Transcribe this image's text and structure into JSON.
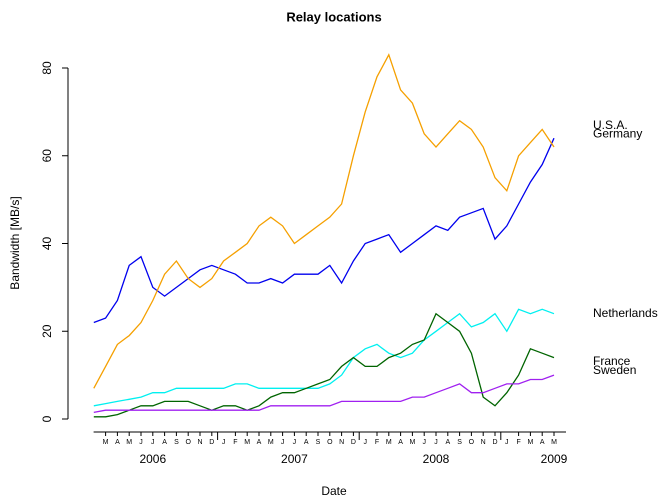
{
  "chart_data": {
    "type": "line",
    "title": "Relay locations",
    "x_label": "Date",
    "y_label": "Bandwidth [MB/s]",
    "x": [
      "2006-02",
      "2006-03",
      "2006-04",
      "2006-05",
      "2006-06",
      "2006-07",
      "2006-08",
      "2006-09",
      "2006-10",
      "2006-11",
      "2006-12",
      "2007-01",
      "2007-02",
      "2007-03",
      "2007-04",
      "2007-05",
      "2007-06",
      "2007-07",
      "2007-08",
      "2007-09",
      "2007-10",
      "2007-11",
      "2007-12",
      "2008-01",
      "2008-02",
      "2008-03",
      "2008-04",
      "2008-05",
      "2008-06",
      "2008-07",
      "2008-08",
      "2008-09",
      "2008-10",
      "2008-11",
      "2008-12",
      "2009-01",
      "2009-02",
      "2009-03",
      "2009-04",
      "2009-05"
    ],
    "xlim": [
      "2006-01",
      "2009-06"
    ],
    "xticks": [
      {
        "value": "2006-03",
        "label": "M"
      },
      {
        "value": "2006-04",
        "label": "A"
      },
      {
        "value": "2006-05",
        "label": "M"
      },
      {
        "value": "2006-06",
        "label": "J"
      },
      {
        "value": "2006-07",
        "label": "J"
      },
      {
        "value": "2006-08",
        "label": "A"
      },
      {
        "value": "2006-09",
        "label": "S"
      },
      {
        "value": "2006-10",
        "label": "O"
      },
      {
        "value": "2006-11",
        "label": "N"
      },
      {
        "value": "2006-12",
        "label": "D"
      },
      {
        "value": "2007-01",
        "label": "J"
      },
      {
        "value": "2007-02",
        "label": "F"
      },
      {
        "value": "2007-03",
        "label": "M"
      },
      {
        "value": "2007-04",
        "label": "A"
      },
      {
        "value": "2007-05",
        "label": "M"
      },
      {
        "value": "2007-06",
        "label": "J"
      },
      {
        "value": "2007-07",
        "label": "J"
      },
      {
        "value": "2007-08",
        "label": "A"
      },
      {
        "value": "2007-09",
        "label": "S"
      },
      {
        "value": "2007-10",
        "label": "O"
      },
      {
        "value": "2007-11",
        "label": "N"
      },
      {
        "value": "2007-12",
        "label": "D"
      },
      {
        "value": "2008-01",
        "label": "J"
      },
      {
        "value": "2008-02",
        "label": "F"
      },
      {
        "value": "2008-03",
        "label": "M"
      },
      {
        "value": "2008-04",
        "label": "A"
      },
      {
        "value": "2008-05",
        "label": "M"
      },
      {
        "value": "2008-06",
        "label": "J"
      },
      {
        "value": "2008-07",
        "label": "J"
      },
      {
        "value": "2008-08",
        "label": "A"
      },
      {
        "value": "2008-09",
        "label": "S"
      },
      {
        "value": "2008-10",
        "label": "O"
      },
      {
        "value": "2008-11",
        "label": "N"
      },
      {
        "value": "2008-12",
        "label": "D"
      },
      {
        "value": "2009-01",
        "label": "J"
      },
      {
        "value": "2009-02",
        "label": "F"
      },
      {
        "value": "2009-03",
        "label": "M"
      },
      {
        "value": "2009-04",
        "label": "A"
      },
      {
        "value": "2009-05",
        "label": "M"
      }
    ],
    "year_ticks": [
      {
        "value": "2006-07",
        "label": "2006"
      },
      {
        "value": "2007-07",
        "label": "2007"
      },
      {
        "value": "2008-07",
        "label": "2008"
      },
      {
        "value": "2009-05",
        "label": "2009"
      }
    ],
    "ylim": [
      0,
      80
    ],
    "yticks": [
      0,
      20,
      40,
      60,
      80
    ],
    "series": [
      {
        "name": "U.S.A.",
        "color": "#0000ee",
        "values": [
          22,
          23,
          27,
          35,
          37,
          30,
          28,
          30,
          32,
          34,
          35,
          34,
          33,
          31,
          31,
          32,
          31,
          33,
          33,
          33,
          35,
          31,
          36,
          40,
          41,
          42,
          38,
          40,
          42,
          44,
          43,
          46,
          47,
          48,
          41,
          44,
          49,
          54,
          58,
          64
        ]
      },
      {
        "name": "Germany",
        "color": "#f5a000",
        "values": [
          7,
          12,
          17,
          19,
          22,
          27,
          33,
          36,
          32,
          30,
          32,
          36,
          38,
          40,
          44,
          46,
          44,
          40,
          42,
          44,
          46,
          49,
          60,
          70,
          78,
          83,
          75,
          72,
          65,
          62,
          65,
          68,
          66,
          62,
          55,
          52,
          60,
          63,
          66,
          62
        ]
      },
      {
        "name": "Netherlands",
        "color": "#00f0f0",
        "values": [
          3,
          3.5,
          4,
          4.5,
          5,
          6,
          6,
          7,
          7,
          7,
          7,
          7,
          8,
          8,
          7,
          7,
          7,
          7,
          7,
          7,
          8,
          10,
          14,
          16,
          17,
          15,
          14,
          15,
          18,
          20,
          22,
          24,
          21,
          22,
          24,
          20,
          25,
          24,
          25,
          24
        ]
      },
      {
        "name": "France",
        "color": "#006400",
        "values": [
          0.5,
          0.5,
          1,
          2,
          3,
          3,
          4,
          4,
          4,
          3,
          2,
          3,
          3,
          2,
          3,
          5,
          6,
          6,
          7,
          8,
          9,
          12,
          14,
          12,
          12,
          14,
          15,
          17,
          18,
          24,
          22,
          20,
          15,
          5,
          3,
          6,
          10,
          16,
          15,
          14
        ]
      },
      {
        "name": "Sweden",
        "color": "#a020f0",
        "values": [
          1.5,
          2,
          2,
          2,
          2,
          2,
          2,
          2,
          2,
          2,
          2,
          2,
          2,
          2,
          2,
          3,
          3,
          3,
          3,
          3,
          3,
          4,
          4,
          4,
          4,
          4,
          4,
          5,
          5,
          6,
          7,
          8,
          6,
          6,
          7,
          8,
          8,
          9,
          9,
          10
        ]
      }
    ]
  }
}
